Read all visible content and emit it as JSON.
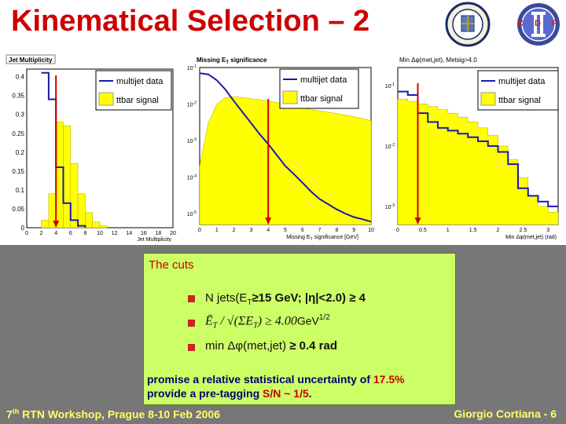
{
  "title": "Kinematical Selection – 2",
  "logos": {
    "left": "university-seal",
    "right_text": "CDF"
  },
  "legend": {
    "multijet": "multijet data",
    "ttbar": "ttbar signal"
  },
  "colors": {
    "title": "#cc0000",
    "multijet": "#1a1aaa",
    "ttbar": "#ffff00",
    "cut_arrow": "#cc0000",
    "cuts_box": "#ccff66",
    "footer": "#ffff66"
  },
  "plots": {
    "jet_mult": {
      "title": "Jet Multiplicity",
      "xlabel": "Jet Multiplicity",
      "yticks": [
        "0.4",
        "0.35",
        "0.3",
        "0.25",
        "0.2",
        "0.15",
        "0.1",
        "0.05",
        "0"
      ],
      "xticks": [
        "0",
        "2",
        "4",
        "6",
        "8",
        "10",
        "12",
        "14",
        "16",
        "18",
        "20"
      ]
    },
    "met_sig": {
      "title": "Missing E",
      "title_sub": "T",
      "title_rest": " significance",
      "xlabel": "Missing E",
      "xlabel_sub": "T",
      "xlabel_rest": " significance [GeV",
      "xlabel_end": "]",
      "yticks": [
        "10",
        "10",
        "10",
        "10",
        "10"
      ],
      "xticks": [
        "0",
        "1",
        "2",
        "3",
        "4",
        "5",
        "6",
        "7",
        "8",
        "9",
        "10"
      ]
    },
    "min_dphi": {
      "title": "Min Δφ(met,jet), Metsig>4.0",
      "xlabel": "Min Δφ(met,jet) (rad)",
      "yticks": [
        "10",
        "10",
        "10"
      ],
      "xticks": [
        "0",
        "0.5",
        "1",
        "1.5",
        "2",
        "2.5",
        "3"
      ]
    }
  },
  "chart_data": [
    {
      "type": "bar",
      "title": "Jet Multiplicity",
      "xlabel": "Jet Multiplicity",
      "xlim": [
        0,
        20
      ],
      "ylim": [
        0,
        0.42
      ],
      "series": [
        {
          "name": "multijet data",
          "style": "line",
          "bins": [
            [
              2,
              3,
              0.41
            ],
            [
              3,
              4,
              0.34
            ],
            [
              4,
              5,
              0.16
            ],
            [
              5,
              6,
              0.065
            ],
            [
              6,
              7,
              0.02
            ],
            [
              7,
              8,
              0.005
            ]
          ]
        },
        {
          "name": "ttbar signal",
          "style": "fill",
          "bins": [
            [
              2,
              3,
              0.02
            ],
            [
              3,
              4,
              0.09
            ],
            [
              4,
              5,
              0.28
            ],
            [
              5,
              6,
              0.27
            ],
            [
              6,
              7,
              0.17
            ],
            [
              7,
              8,
              0.09
            ],
            [
              8,
              9,
              0.04
            ],
            [
              9,
              10,
              0.015
            ],
            [
              10,
              11,
              0.005
            ]
          ]
        }
      ],
      "cut_at": 4
    },
    {
      "type": "bar",
      "title": "Missing ET significance",
      "xlim": [
        0,
        10
      ],
      "ylog": true,
      "ylim": [
        5e-06,
        0.1
      ],
      "series": [
        {
          "name": "multijet data",
          "style": "line",
          "x": [
            0,
            0.5,
            1,
            1.5,
            2,
            2.5,
            3,
            3.5,
            4,
            4.5,
            5,
            5.5,
            6,
            6.5,
            7,
            7.5,
            8,
            8.5,
            9,
            9.5,
            10
          ],
          "y": [
            0.07,
            0.065,
            0.045,
            0.025,
            0.012,
            0.006,
            0.003,
            0.0015,
            0.0008,
            0.0004,
            0.0002,
            0.00012,
            7e-05,
            4e-05,
            2.5e-05,
            1.8e-05,
            1.3e-05,
            1e-05,
            8e-06,
            7e-06,
            6e-06
          ]
        },
        {
          "name": "ttbar signal",
          "style": "fill",
          "x": [
            0,
            0.5,
            1,
            1.5,
            2,
            2.5,
            3,
            3.5,
            4,
            4.5,
            5,
            5.5,
            6,
            6.5,
            7,
            7.5,
            8,
            8.5,
            9,
            9.5,
            10
          ],
          "y": [
            0.0002,
            0.003,
            0.01,
            0.015,
            0.016,
            0.015,
            0.014,
            0.013,
            0.012,
            0.011,
            0.01,
            0.009,
            0.008,
            0.007,
            0.0065,
            0.006,
            0.0055,
            0.005,
            0.0045,
            0.004,
            0.0035
          ]
        }
      ],
      "cut_at": 4
    },
    {
      "type": "bar",
      "title": "Min Δφ(met,jet), Metsig>4.0",
      "xlabel": "Min Δφ(met,jet) (rad)",
      "xlim": [
        0,
        3.2
      ],
      "ylog": true,
      "ylim": [
        0.0005,
        0.2
      ],
      "series": [
        {
          "name": "multijet data",
          "style": "line",
          "x": [
            0,
            0.2,
            0.4,
            0.6,
            0.8,
            1.0,
            1.2,
            1.4,
            1.6,
            1.8,
            2.0,
            2.2,
            2.4,
            2.6,
            2.8,
            3.0
          ],
          "y": [
            0.08,
            0.07,
            0.035,
            0.025,
            0.02,
            0.018,
            0.016,
            0.014,
            0.012,
            0.01,
            0.008,
            0.005,
            0.002,
            0.0015,
            0.0012,
            0.001
          ]
        },
        {
          "name": "ttbar signal",
          "style": "fill",
          "x": [
            0,
            0.2,
            0.4,
            0.6,
            0.8,
            1.0,
            1.2,
            1.4,
            1.6,
            1.8,
            2.0,
            2.2,
            2.4,
            2.6,
            2.8,
            3.0
          ],
          "y": [
            0.06,
            0.055,
            0.05,
            0.045,
            0.04,
            0.035,
            0.03,
            0.025,
            0.02,
            0.015,
            0.01,
            0.006,
            0.003,
            0.0015,
            0.001,
            0.0008
          ]
        }
      ],
      "cut_at": 0.4
    }
  ],
  "cuts": {
    "heading": "The cuts",
    "item1": "N jets(E",
    "item1_sub": "T",
    "item1_b": "≥15 GeV; |η|<2.0) ≥ 4",
    "item2_formula": "Ē",
    "item2_formula_sub": "T",
    "item2_mid": " / √(ΣE",
    "item2_mid_sub": "T",
    "item2_mid_end": ") ≥ 4.00",
    "item2_unit": "GeV",
    "item2_unit_sup": "1/2",
    "item3_a": "min Δφ(met,jet) ",
    "item3_b": "≥ 0.4 rad",
    "promise1_a": "promise a relative statistical uncertainty of ",
    "promise1_b": "17.5%",
    "promise2_a": "provide a pre-tagging ",
    "promise2_b": "S/N ~ 1/5",
    "promise2_c": "."
  },
  "footer": {
    "left_a": "7",
    "left_sup": "th",
    "left_b": " RTN Workshop, Prague 8-10 Feb 2006",
    "right": "Giorgio Cortiana  -  6"
  }
}
